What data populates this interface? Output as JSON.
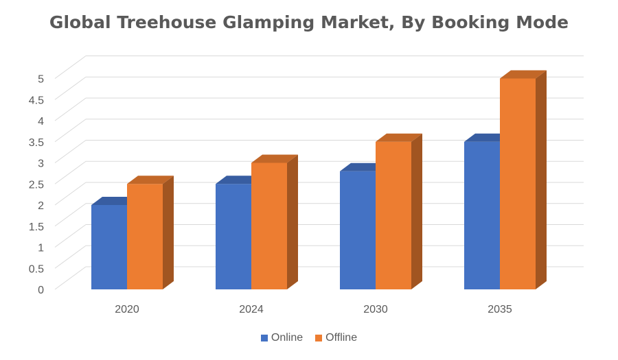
{
  "chart_data": {
    "type": "bar",
    "title": "Global Treehouse Glamping Market, By Booking Mode",
    "categories": [
      "2020",
      "2024",
      "2030",
      "2035"
    ],
    "series": [
      {
        "name": "Online",
        "values": [
          2.0,
          2.5,
          2.8,
          3.5
        ],
        "color": "#4472C4"
      },
      {
        "name": "Offline",
        "values": [
          2.5,
          3.0,
          3.5,
          5.0
        ],
        "color": "#ED7D31"
      }
    ],
    "yticks": [
      "0",
      "0.5",
      "1",
      "1.5",
      "2",
      "2.5",
      "3",
      "3.5",
      "4",
      "4.5",
      "5"
    ],
    "ylim": [
      0,
      5.5
    ],
    "grid": true,
    "legend_position": "bottom"
  }
}
